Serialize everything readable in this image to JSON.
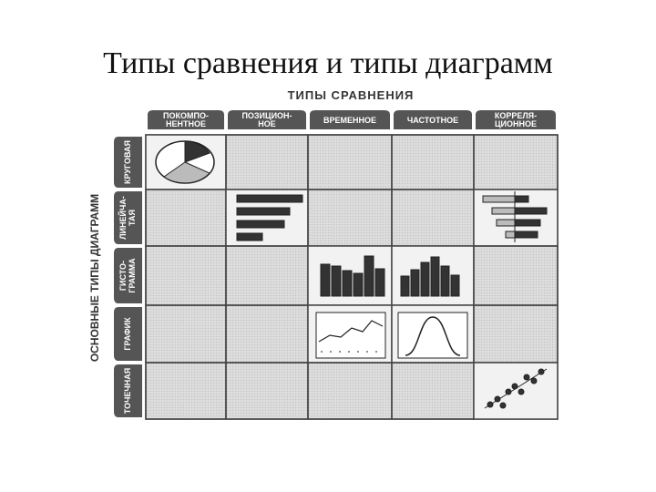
{
  "title": "Типы сравнения и типы диаграмм",
  "matrix": {
    "column_axis": "ТИПЫ СРАВНЕНИЯ",
    "row_axis": "ОСНОВНЫЕ ТИПЫ ДИАГРАММ",
    "columns": [
      [
        "ПОКОМПО-",
        "НЕНТНОЕ"
      ],
      [
        "ПОЗИЦИОН-",
        "НОЕ"
      ],
      [
        "ВРЕМЕННОЕ"
      ],
      [
        "ЧАСТОТНОЕ"
      ],
      [
        "КОРРЕЛЯ-",
        "ЦИОННОЕ"
      ]
    ],
    "rows": [
      [
        "КРУГОВАЯ"
      ],
      [
        "ЛИНЕЙЧА-",
        "ТАЯ"
      ],
      [
        "ГИСТО-",
        "ГРАММА"
      ],
      [
        "ГРАФИК"
      ],
      [
        "ТОЧЕЧНАЯ"
      ]
    ]
  }
}
